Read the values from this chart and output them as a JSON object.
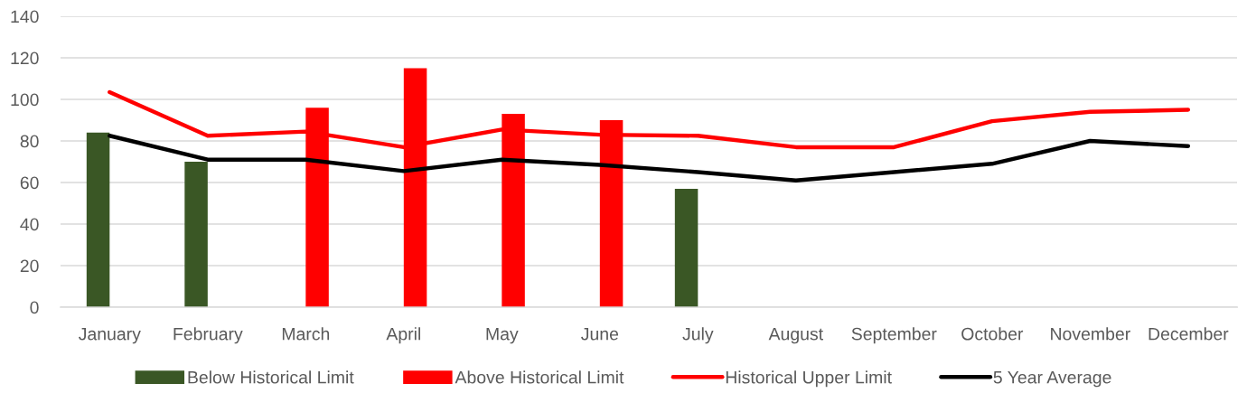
{
  "chart_data": {
    "type": "bar",
    "categories": [
      "January",
      "February",
      "March",
      "April",
      "May",
      "June",
      "July",
      "August",
      "September",
      "October",
      "November",
      "December"
    ],
    "series": [
      {
        "name": "Below Historical Limit",
        "color": "#3a5725",
        "values": [
          84,
          70,
          null,
          null,
          null,
          null,
          57,
          null,
          null,
          null,
          null,
          null
        ]
      },
      {
        "name": "Above Historical Limit",
        "color": "#ff0000",
        "values": [
          null,
          null,
          96,
          115,
          93,
          90,
          null,
          null,
          null,
          null,
          null,
          null
        ]
      },
      {
        "name": "Historical Upper Limit",
        "type": "line",
        "color": "#ff0000",
        "values": [
          103.5,
          82.5,
          84.5,
          77,
          85.5,
          83,
          82.5,
          77,
          77,
          89.5,
          94,
          95
        ]
      },
      {
        "name": "5 Year Average",
        "type": "line",
        "color": "#000000",
        "values": [
          82.5,
          71,
          71,
          65.5,
          71,
          68.5,
          65,
          61,
          65,
          69,
          80,
          77.5
        ]
      }
    ],
    "ylim": [
      0,
      140
    ],
    "yticks": [
      0,
      20,
      40,
      60,
      80,
      100,
      120,
      140
    ],
    "grid": "y",
    "legend": "bottom"
  }
}
